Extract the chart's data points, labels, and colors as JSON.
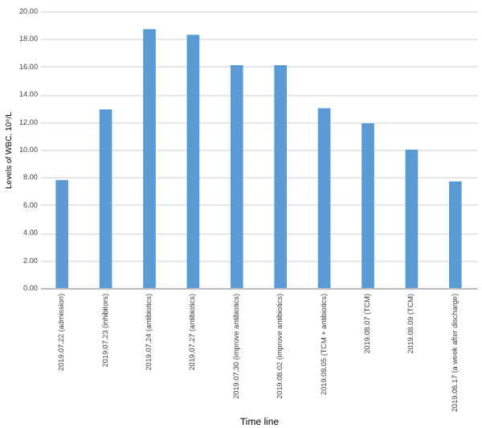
{
  "chart_data": {
    "type": "bar",
    "xlabel": "Time line",
    "ylabel": "Levels of WBC, 10⁹/L",
    "categories": [
      "2019.07.22 (admission)",
      "2019.07.23 (inhibitors)",
      "2019.07.24 (antibiotics)",
      "2019.07.27 (antibiotics)",
      "2019.07.30 (improve antibiotics)",
      "2019.08.02 (improve antibiotics)",
      "2019.08.05 (TCM + antibiotics)",
      "2019.08.07 (TCM)",
      "2019.08.09 (TCM)",
      "2019.08.17 (a week after discharge)"
    ],
    "values": [
      7.8,
      12.9,
      18.7,
      18.3,
      16.1,
      16.1,
      13.0,
      11.9,
      10.0,
      7.7
    ],
    "color": "#5b9bd5",
    "ylim": [
      0,
      20
    ],
    "yticks": [
      {
        "value": 0,
        "label": "0.00"
      },
      {
        "value": 2,
        "label": "2.00"
      },
      {
        "value": 4,
        "label": "4.00"
      },
      {
        "value": 6,
        "label": "6.00"
      },
      {
        "value": 8,
        "label": "8.00"
      },
      {
        "value": 10,
        "label": "10.00"
      },
      {
        "value": 12,
        "label": "12.00"
      },
      {
        "value": 14,
        "label": "14.00"
      },
      {
        "value": 16,
        "label": "16.00"
      },
      {
        "value": 18,
        "label": "18.00"
      },
      {
        "value": 20,
        "label": "20.00"
      }
    ],
    "grid": "y"
  }
}
